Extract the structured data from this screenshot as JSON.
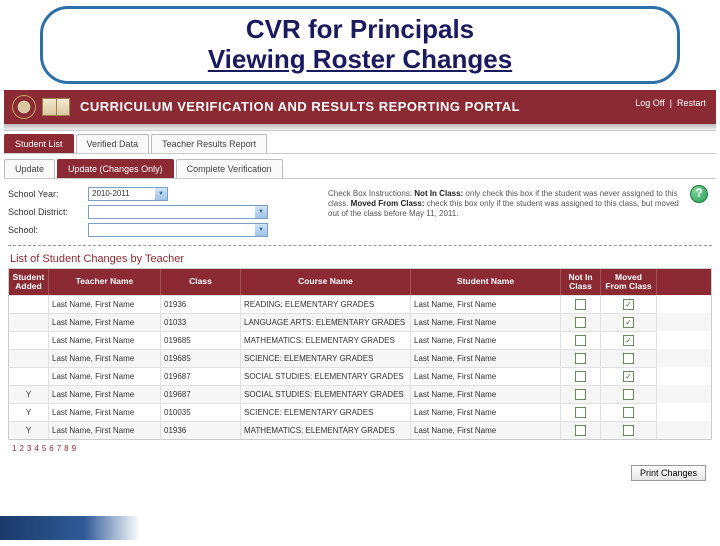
{
  "slide": {
    "title_l1": "CVR for Principals",
    "title_l2": "Viewing Roster Changes"
  },
  "portal": {
    "title": "CURRICULUM VERIFICATION AND RESULTS REPORTING PORTAL",
    "links": {
      "logoff": "Log Off",
      "restart": "Restart"
    }
  },
  "tabs": {
    "main": [
      "Student List",
      "Verified Data",
      "Teacher Results Report"
    ],
    "main_active_idx": 0,
    "sub": [
      "Update",
      "Update (Changes Only)",
      "Complete Verification"
    ],
    "sub_active_idx": 1
  },
  "filters": {
    "year_label": "School Year:",
    "year_value": "2010-2011",
    "district_label": "School District:",
    "school_label": "School:",
    "instructions": {
      "lead": "Check Box Instructions:",
      "notin_b": "Not In Class:",
      "notin_txt": " only check this box if the student was never assigned to this class. ",
      "moved_b": "Moved From Class:",
      "moved_txt": " check this box only if the student was assigned to this class, but moved out of the class before May 11, 2011."
    }
  },
  "list_title": "List of Student Changes by Teacher",
  "columns": {
    "added": "Student Added",
    "teacher": "Teacher Name",
    "class": "Class",
    "course": "Course Name",
    "student": "Student Name",
    "notin": "Not In Class",
    "moved": "Moved From Class"
  },
  "rows": [
    {
      "added": "",
      "teacher": "Last Name, First Name",
      "class": "01936",
      "course": "READING: ELEMENTARY GRADES",
      "student": "Last Name, First Name",
      "notin": false,
      "moved": true
    },
    {
      "added": "",
      "teacher": "Last Name, First Name",
      "class": "01033",
      "course": "LANGUAGE ARTS: ELEMENTARY GRADES",
      "student": "Last Name, First Name",
      "notin": false,
      "moved": true
    },
    {
      "added": "",
      "teacher": "Last Name, First Name",
      "class": "019685",
      "course": "MATHEMATICS: ELEMENTARY GRADES",
      "student": "Last Name, First Name",
      "notin": false,
      "moved": true
    },
    {
      "added": "",
      "teacher": "Last Name, First Name",
      "class": "019685",
      "course": "SCIENCE: ELEMENTARY GRADES",
      "student": "Last Name, First Name",
      "notin": false,
      "moved": false
    },
    {
      "added": "",
      "teacher": "Last Name, First Name",
      "class": "019687",
      "course": "SOCIAL STUDIES: ELEMENTARY GRADES",
      "student": "Last Name, First Name",
      "notin": false,
      "moved": true
    },
    {
      "added": "Y",
      "teacher": "Last Name, First Name",
      "class": "019687",
      "course": "SOCIAL STUDIES: ELEMENTARY GRADES",
      "student": "Last Name, First Name",
      "notin": false,
      "moved": false
    },
    {
      "added": "Y",
      "teacher": "Last Name, First Name",
      "class": "010035",
      "course": "SCIENCE: ELEMENTARY GRADES",
      "student": "Last Name, First Name",
      "notin": false,
      "moved": false
    },
    {
      "added": "Y",
      "teacher": "Last Name, First Name",
      "class": "01936",
      "course": "MATHEMATICS: ELEMENTARY GRADES",
      "student": "Last Name, First Name",
      "notin": false,
      "moved": false
    }
  ],
  "pager": [
    "1",
    "2",
    "3",
    "4",
    "5",
    "6",
    "7",
    "8",
    "9"
  ],
  "print_label": "Print Changes",
  "colors": {
    "brand": "#8b2a32",
    "title_border": "#2d6fa8",
    "title_text": "#1a1a5e"
  }
}
